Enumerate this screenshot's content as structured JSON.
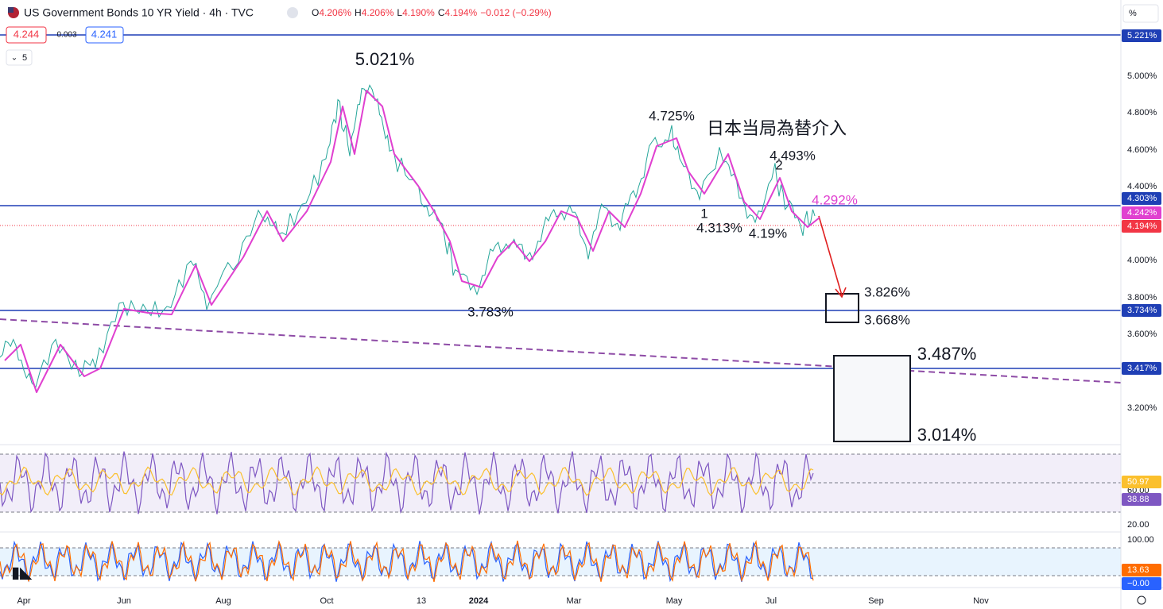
{
  "header": {
    "symbol": "US Government Bonds 10 YR Yield · 4h · TVC",
    "ohlc": [
      {
        "label": "O",
        "value": "4.206%"
      },
      {
        "label": "H",
        "value": "4.206%"
      },
      {
        "label": "L",
        "value": "4.190%"
      },
      {
        "label": "C",
        "value": "4.194%"
      }
    ],
    "change": "−0.012 (−0.29%)",
    "sell": "4.244",
    "spread": "0.003",
    "buy": "4.241",
    "indicator_count": "5",
    "unit": "%"
  },
  "price_axis": [
    "5.000%",
    "4.800%",
    "4.600%",
    "4.400%",
    "4.000%",
    "3.800%",
    "3.600%",
    "3.200%"
  ],
  "price_tags": [
    {
      "text": "5.221%",
      "color": "#1f3fb5"
    },
    {
      "text": "4.303%",
      "color": "#1f3fb5"
    },
    {
      "text": "4.242%",
      "color": "#e040d0"
    },
    {
      "text": "4.194%",
      "color": "#f23645"
    },
    {
      "text": "3.734%",
      "color": "#1f3fb5"
    },
    {
      "text": "3.417%",
      "color": "#1f3fb5"
    }
  ],
  "annotations": [
    "5.021%",
    "4.725%",
    "日本当局為替介入",
    "4.493%",
    "2",
    "4.292%",
    "1",
    "4.313%",
    "4.19%",
    "3.783%",
    "3.826%",
    "3.668%",
    "3.487%",
    "3.014%"
  ],
  "rsi_axis": [
    "60.00",
    "20.00"
  ],
  "rsi_tags": [
    {
      "text": "50.97",
      "color": "#fbc02d"
    },
    {
      "text": "38.88",
      "color": "#7e57c2"
    }
  ],
  "stoch_axis": [
    "100.00"
  ],
  "stoch_tags": [
    {
      "text": "13.63",
      "color": "#ff6d00"
    },
    {
      "text": "−0.00",
      "color": "#2962ff"
    }
  ],
  "time_axis": [
    "Apr",
    "Jun",
    "Aug",
    "Oct",
    "13",
    "2024",
    "Mar",
    "May",
    "Jul",
    "Sep",
    "Nov"
  ]
}
